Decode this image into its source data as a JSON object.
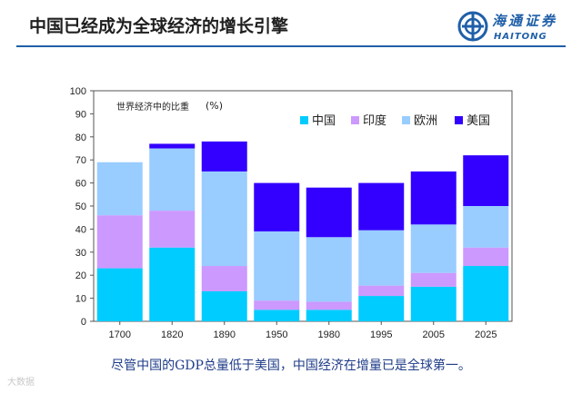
{
  "header": {
    "title": "中国已经成为全球经济的增长引擎",
    "logo_cn": "海通证券",
    "logo_en": "HAITONG",
    "brand_color": "#1f5fa8"
  },
  "chart_data": {
    "type": "bar",
    "stacked": true,
    "annotation": "世界经济中的比重",
    "unit": "(%)",
    "categories": [
      "1700",
      "1820",
      "1890",
      "1950",
      "1980",
      "1995",
      "2005",
      "2025"
    ],
    "ylim": [
      0,
      100
    ],
    "yticks": [
      0,
      10,
      20,
      30,
      40,
      50,
      60,
      70,
      80,
      90,
      100
    ],
    "grid": false,
    "legend_position": "top-right",
    "series": [
      {
        "name": "中国",
        "color": "#00ccff",
        "values": [
          23,
          32,
          13,
          5,
          5,
          11,
          15,
          24
        ]
      },
      {
        "name": "印度",
        "color": "#cc99ff",
        "values": [
          23,
          16,
          11,
          4,
          3.5,
          4.5,
          6,
          8
        ]
      },
      {
        "name": "欧洲",
        "color": "#99ccff",
        "values": [
          23,
          27,
          41,
          30,
          28,
          24,
          21,
          18
        ]
      },
      {
        "name": "美国",
        "color": "#3300ff",
        "values": [
          0,
          2,
          13,
          21,
          21.5,
          20.5,
          23,
          22
        ]
      }
    ]
  },
  "caption": "尽管中国的GDP总量低于美国，中国经济在增量已是全球第一。",
  "watermark": "大数据"
}
